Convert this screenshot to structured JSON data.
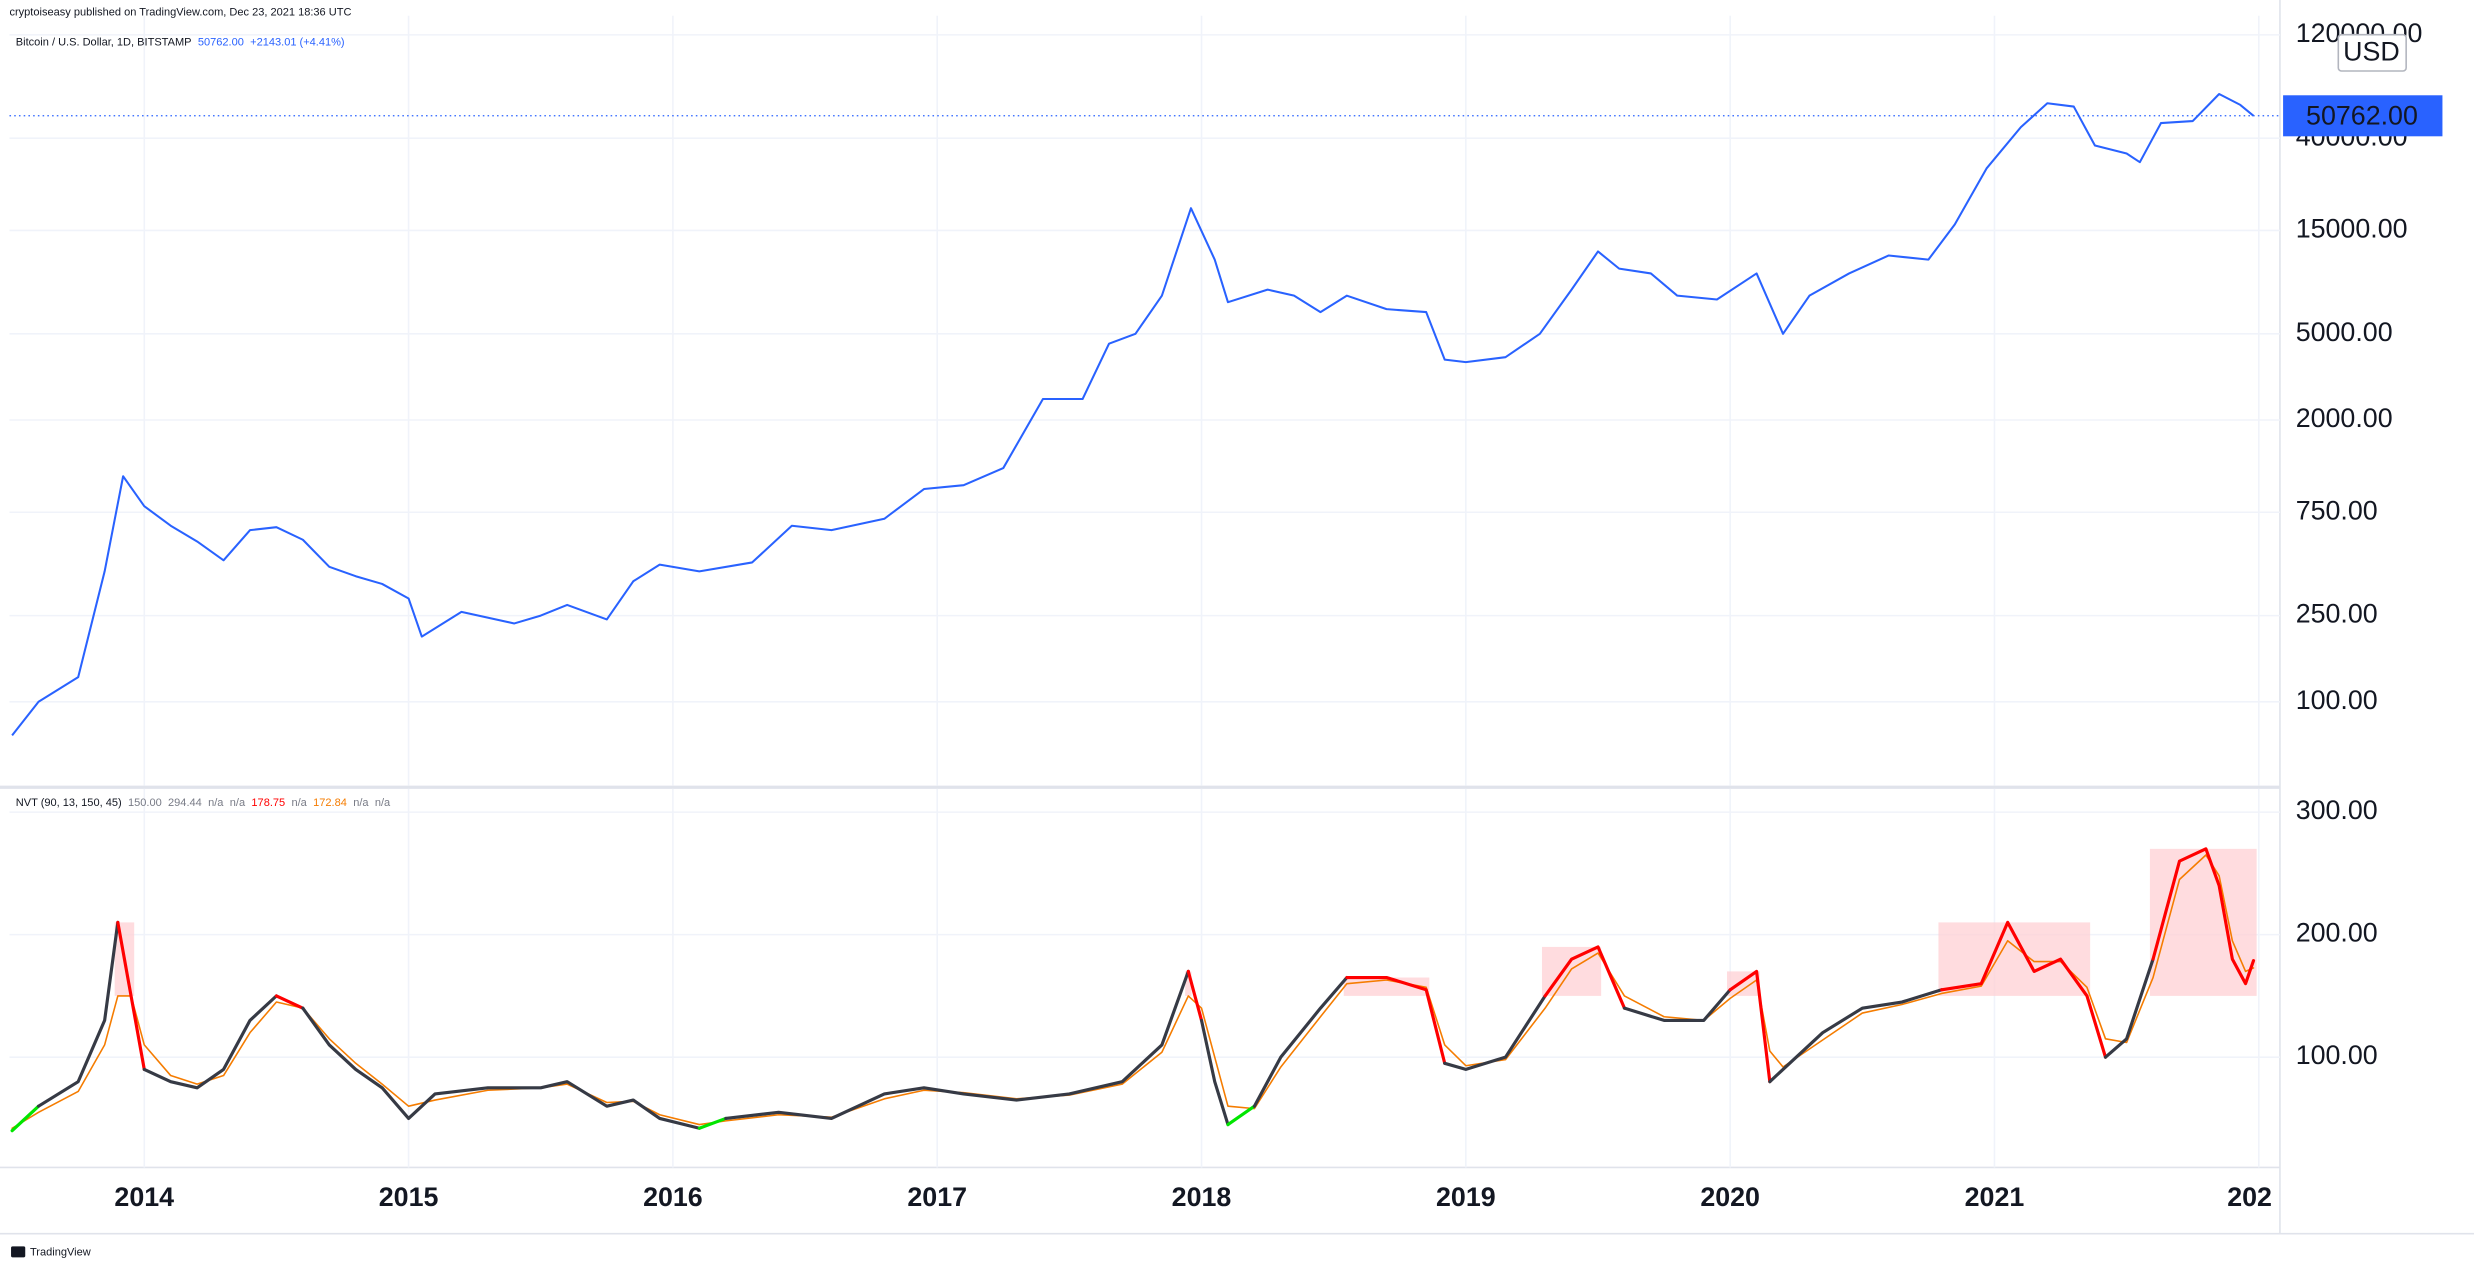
{
  "header": {
    "publisher": "cryptoiseasy published on TradingView.com, Dec 23, 2021 18:36 UTC",
    "brand": "TradingView"
  },
  "chart_data": [
    {
      "type": "line",
      "log": true,
      "grid": true,
      "legend_title": "Bitcoin / U.S. Dollar, 1D, BITSTAMP",
      "last": {
        "value": 50762,
        "label": "50762.00"
      },
      "change": "+2143.01 (+4.41%)",
      "currency": "USD",
      "color": "#2962ff",
      "xlim": [
        2013.49,
        2022.08
      ],
      "ylim": [
        41,
        147000
      ],
      "yticks": [
        {
          "value": 100,
          "label": "100.00"
        },
        {
          "value": 250,
          "label": "250.00"
        },
        {
          "value": 750,
          "label": "750.00"
        },
        {
          "value": 2000,
          "label": "2000.00"
        },
        {
          "value": 5000,
          "label": "5000.00"
        },
        {
          "value": 15000,
          "label": "15000.00"
        },
        {
          "value": 40000,
          "label": "40000.00"
        },
        {
          "value": 120000,
          "label": "120000.00"
        }
      ],
      "x": [
        2013.5,
        2013.6,
        2013.75,
        2013.85,
        2013.92,
        2014.0,
        2014.1,
        2014.2,
        2014.3,
        2014.4,
        2014.5,
        2014.6,
        2014.7,
        2014.8,
        2014.9,
        2015.0,
        2015.05,
        2015.2,
        2015.4,
        2015.5,
        2015.6,
        2015.75,
        2015.85,
        2015.95,
        2016.1,
        2016.3,
        2016.45,
        2016.6,
        2016.8,
        2016.95,
        2017.1,
        2017.25,
        2017.4,
        2017.55,
        2017.65,
        2017.75,
        2017.85,
        2017.96,
        2018.05,
        2018.1,
        2018.25,
        2018.35,
        2018.45,
        2018.55,
        2018.7,
        2018.85,
        2018.92,
        2019.0,
        2019.15,
        2019.28,
        2019.4,
        2019.5,
        2019.58,
        2019.7,
        2019.8,
        2019.95,
        2020.1,
        2020.2,
        2020.3,
        2020.45,
        2020.6,
        2020.75,
        2020.85,
        2020.97,
        2021.1,
        2021.2,
        2021.3,
        2021.38,
        2021.5,
        2021.55,
        2021.63,
        2021.75,
        2021.85,
        2021.93,
        2021.98
      ],
      "values": [
        70,
        100,
        130,
        400,
        1100,
        800,
        650,
        550,
        450,
        620,
        640,
        560,
        420,
        380,
        350,
        300,
        200,
        260,
        230,
        250,
        280,
        240,
        360,
        430,
        400,
        440,
        650,
        620,
        700,
        960,
        1000,
        1200,
        2500,
        2500,
        4500,
        5000,
        7500,
        19000,
        11000,
        7000,
        8000,
        7500,
        6300,
        7500,
        6500,
        6300,
        3800,
        3700,
        3900,
        5000,
        8000,
        12000,
        10000,
        9500,
        7500,
        7200,
        9500,
        5000,
        7500,
        9500,
        11500,
        11000,
        16000,
        29000,
        45000,
        58000,
        56000,
        37000,
        34000,
        31000,
        47000,
        48000,
        64000,
        57000,
        50762
      ]
    },
    {
      "type": "line",
      "log": false,
      "grid": true,
      "legend_title": "NVT (90, 13, 150, 45)",
      "legend_values": [
        {
          "text": "150.00",
          "color": "#787b86"
        },
        {
          "text": "294.44",
          "color": "#787b86"
        },
        {
          "text": "n/a",
          "color": "#787b86"
        },
        {
          "text": "n/a",
          "color": "#787b86"
        },
        {
          "text": "178.75",
          "color": "#ff0000"
        },
        {
          "text": "n/a",
          "color": "#787b86"
        },
        {
          "text": "172.84",
          "color": "#f57c00"
        },
        {
          "text": "n/a",
          "color": "#787b86"
        },
        {
          "text": "n/a",
          "color": "#787b86"
        }
      ],
      "bands": {
        "high": 150,
        "low": 45,
        "zone_color": "#ffcdd2"
      },
      "xlim": [
        2013.49,
        2022.08
      ],
      "xticks": [
        2014,
        2015,
        2016,
        2017,
        2018,
        2019,
        2020,
        2021,
        {
          "value": 2022,
          "label": "202"
        }
      ],
      "ylim": [
        10,
        319
      ],
      "yticks": [
        {
          "value": 100,
          "label": "100.00"
        },
        {
          "value": 200,
          "label": "200.00"
        },
        {
          "value": 300,
          "label": "300.00"
        }
      ],
      "x": [
        2013.5,
        2013.6,
        2013.75,
        2013.85,
        2013.9,
        2013.95,
        2014.0,
        2014.1,
        2014.2,
        2014.3,
        2014.4,
        2014.5,
        2014.6,
        2014.7,
        2014.8,
        2014.9,
        2015.0,
        2015.1,
        2015.3,
        2015.5,
        2015.6,
        2015.75,
        2015.85,
        2015.95,
        2016.1,
        2016.2,
        2016.4,
        2016.6,
        2016.8,
        2016.95,
        2017.1,
        2017.3,
        2017.5,
        2017.7,
        2017.85,
        2017.95,
        2018.0,
        2018.05,
        2018.1,
        2018.2,
        2018.3,
        2018.45,
        2018.55,
        2018.7,
        2018.85,
        2018.92,
        2019.0,
        2019.15,
        2019.3,
        2019.4,
        2019.5,
        2019.6,
        2019.75,
        2019.9,
        2020.0,
        2020.1,
        2020.15,
        2020.2,
        2020.35,
        2020.5,
        2020.65,
        2020.8,
        2020.95,
        2021.05,
        2021.15,
        2021.25,
        2021.35,
        2021.42,
        2021.5,
        2021.6,
        2021.7,
        2021.8,
        2021.85,
        2021.9,
        2021.95,
        2021.98
      ],
      "series": [
        {
          "color": "#363a45",
          "high_color": "#ff0000",
          "low_color": "#00e600",
          "width": 2,
          "values": [
            40,
            60,
            80,
            130,
            210,
            150,
            90,
            80,
            75,
            90,
            130,
            150,
            140,
            110,
            90,
            75,
            50,
            70,
            75,
            75,
            80,
            60,
            65,
            50,
            42,
            50,
            55,
            50,
            70,
            75,
            70,
            65,
            70,
            80,
            110,
            170,
            130,
            80,
            45,
            60,
            100,
            140,
            165,
            165,
            155,
            95,
            90,
            100,
            150,
            180,
            190,
            140,
            130,
            130,
            155,
            170,
            80,
            90,
            120,
            140,
            145,
            155,
            160,
            210,
            170,
            180,
            150,
            100,
            115,
            180,
            260,
            270,
            240,
            180,
            160,
            178.75
          ]
        },
        {
          "color": "#f57c00",
          "width": 1,
          "values": [
            42,
            55,
            72,
            110,
            150,
            150,
            110,
            85,
            78,
            85,
            120,
            145,
            140,
            115,
            95,
            78,
            60,
            65,
            73,
            75,
            78,
            63,
            64,
            53,
            45,
            48,
            53,
            51,
            66,
            73,
            71,
            66,
            69,
            78,
            104,
            150,
            140,
            100,
            60,
            58,
            92,
            133,
            160,
            163,
            157,
            110,
            93,
            98,
            140,
            172,
            185,
            150,
            133,
            130,
            148,
            163,
            105,
            92,
            114,
            136,
            143,
            152,
            158,
            195,
            178,
            178,
            157,
            115,
            112,
            165,
            245,
            265,
            248,
            195,
            170,
            172.84
          ]
        }
      ]
    }
  ]
}
